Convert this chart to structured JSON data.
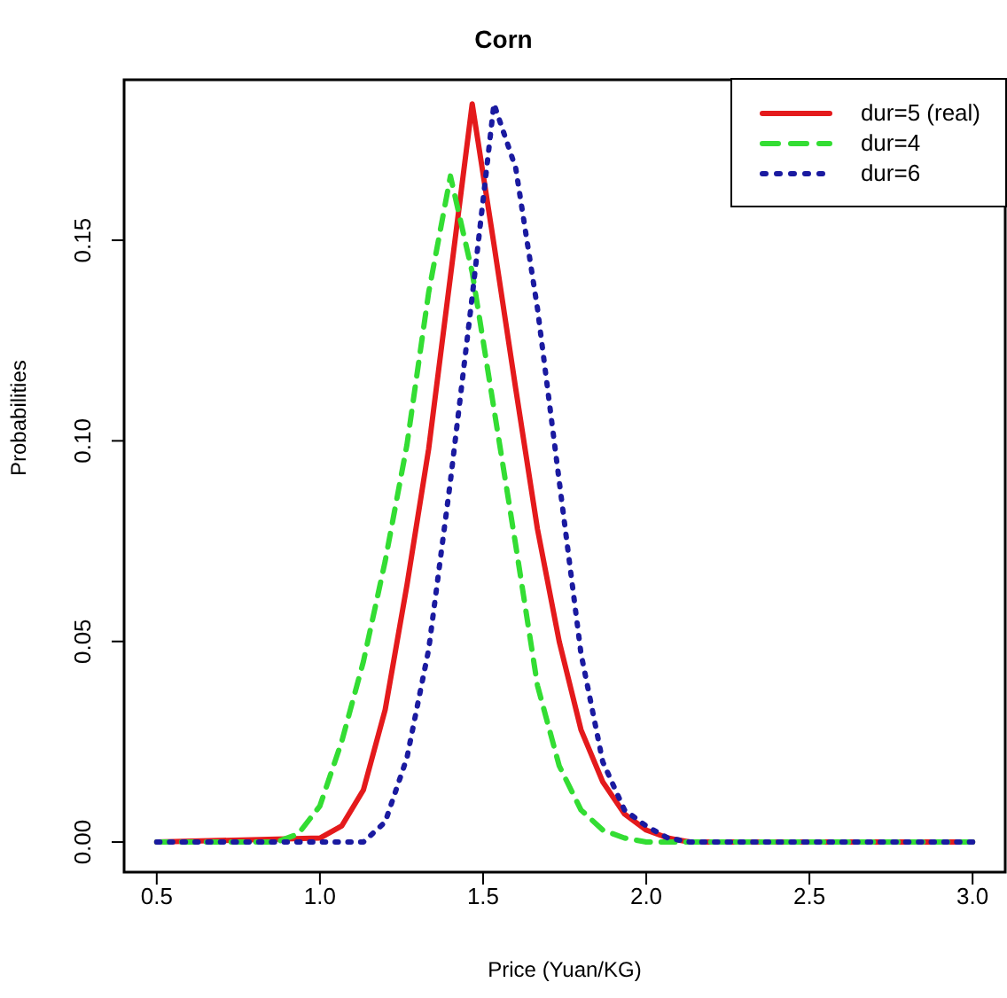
{
  "chart_data": {
    "type": "line",
    "title": "Corn",
    "xlabel": "Price (Yuan/KG)",
    "ylabel": "Probabilities",
    "xlim": [
      0.4,
      3.1
    ],
    "ylim": [
      -0.0075,
      0.19
    ],
    "xticks": [
      {
        "value": 0.5,
        "label": "0.5"
      },
      {
        "value": 1,
        "label": "1.0"
      },
      {
        "value": 1.5,
        "label": "1.5"
      },
      {
        "value": 2,
        "label": "2.0"
      },
      {
        "value": 2.5,
        "label": "2.5"
      },
      {
        "value": 3,
        "label": "3.0"
      }
    ],
    "yticks": [
      {
        "value": 0,
        "label": "0.00"
      },
      {
        "value": 0.05,
        "label": "0.05"
      },
      {
        "value": 0.1,
        "label": "0.10"
      },
      {
        "value": 0.15,
        "label": "0.15"
      }
    ],
    "grid": false,
    "legend": "top right",
    "marker": "none",
    "series": [
      {
        "name": "dur=5 (real)",
        "color": "#e41a1c",
        "line_style": "solid",
        "x": [
          0.5,
          1.0,
          1.0667,
          1.1333,
          1.2,
          1.2667,
          1.3333,
          1.4,
          1.4667,
          1.5333,
          1.6,
          1.6667,
          1.7333,
          1.8,
          1.8667,
          1.9333,
          2.0,
          2.0667,
          2.1333,
          3.0
        ],
        "values": [
          0,
          0.001,
          0.004,
          0.013,
          0.033,
          0.064,
          0.098,
          0.141,
          0.184,
          0.149,
          0.113,
          0.078,
          0.05,
          0.028,
          0.015,
          0.007,
          0.003,
          0.001,
          0,
          0
        ]
      },
      {
        "name": "dur=4",
        "color": "#33dd33",
        "line_style": "dashed",
        "x": [
          0.5,
          0.8667,
          0.9333,
          1.0,
          1.0667,
          1.1333,
          1.2,
          1.2667,
          1.3333,
          1.4,
          1.4667,
          1.5333,
          1.6,
          1.6667,
          1.7333,
          1.8,
          1.8667,
          1.9333,
          2.0,
          3.0
        ],
        "values": [
          0,
          0,
          0.002,
          0.009,
          0.025,
          0.045,
          0.07,
          0.099,
          0.137,
          0.166,
          0.142,
          0.108,
          0.074,
          0.039,
          0.019,
          0.008,
          0.003,
          0.001,
          0,
          0
        ]
      },
      {
        "name": "dur=6",
        "color": "#1a1aa0",
        "line_style": "dotted",
        "x": [
          0.5,
          1.1333,
          1.2,
          1.2667,
          1.3333,
          1.4,
          1.4667,
          1.5333,
          1.6,
          1.6667,
          1.7333,
          1.8,
          1.8667,
          1.9333,
          2.0,
          2.0667,
          2.1333,
          3.0
        ],
        "values": [
          0,
          0,
          0.005,
          0.021,
          0.048,
          0.09,
          0.136,
          0.184,
          0.168,
          0.133,
          0.09,
          0.047,
          0.02,
          0.008,
          0.004,
          0.001,
          0,
          0
        ]
      }
    ]
  }
}
